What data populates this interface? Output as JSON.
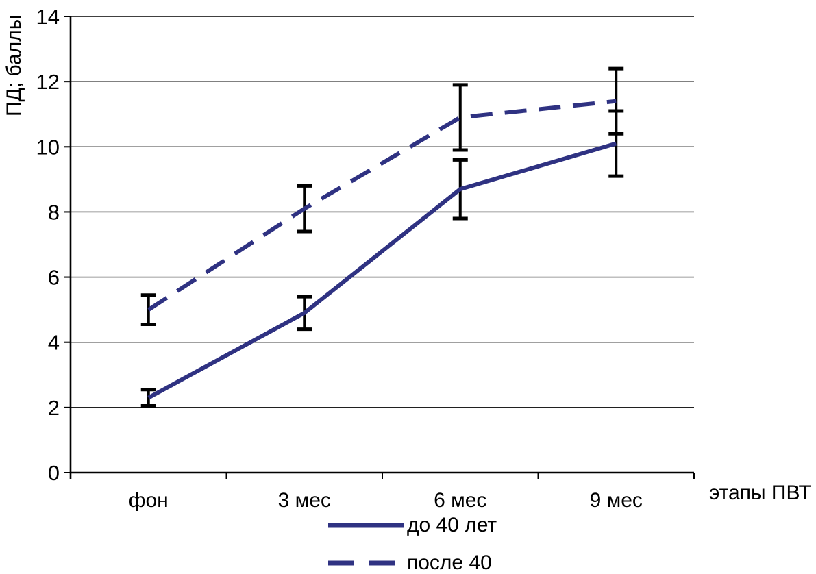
{
  "axes": {
    "y_title": "ПД; баллы",
    "x_title": "этапы ПВТ"
  },
  "legend": {
    "items": [
      {
        "label": "до 40 лет",
        "style": "solid"
      },
      {
        "label": "после 40",
        "style": "dashed"
      }
    ]
  },
  "chart_data": {
    "type": "line",
    "title": "",
    "xlabel": "этапы ПВТ",
    "ylabel": "ПД; баллы",
    "categories": [
      "фон",
      "3 мес",
      "6 мес",
      "9 мес"
    ],
    "series": [
      {
        "name": "до 40 лет",
        "style": "solid",
        "values": [
          2.3,
          4.9,
          8.7,
          10.1
        ],
        "errors": [
          0.25,
          0.5,
          0.9,
          1.0
        ]
      },
      {
        "name": "после 40",
        "style": "dashed",
        "values": [
          5.0,
          8.1,
          10.9,
          11.4
        ],
        "errors": [
          0.45,
          0.7,
          1.0,
          1.0
        ]
      }
    ],
    "ylim": [
      0,
      14
    ],
    "yticks": [
      0,
      2,
      4,
      6,
      8,
      10,
      12,
      14
    ],
    "grid": "horizontal",
    "legend_position": "bottom",
    "line_color": "#2f3282",
    "error_bar_color": "#000000",
    "axis_color": "#000000"
  }
}
